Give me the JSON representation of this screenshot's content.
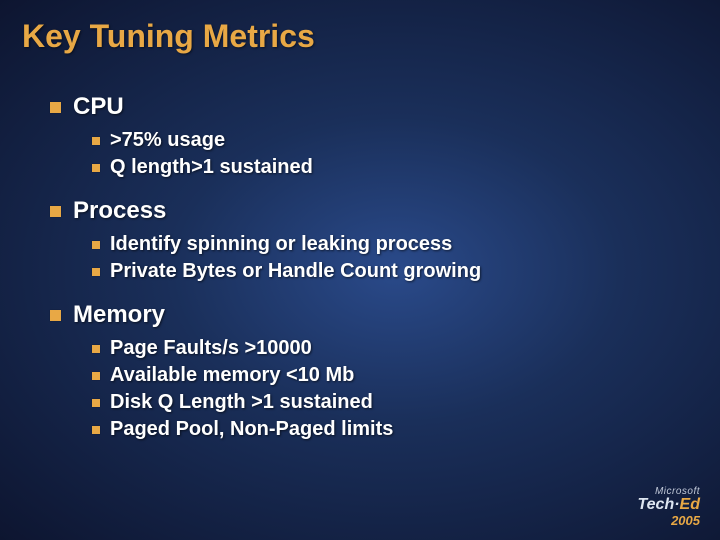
{
  "title": "Key Tuning Metrics",
  "colors": {
    "title": "#e8a845",
    "bullet": "#e8a845",
    "text": "#ffffff",
    "bg_center": "#2a4a8a",
    "bg_edge": "#0d1530"
  },
  "typography": {
    "title_fontsize": 32,
    "section_fontsize": 24,
    "item_fontsize": 20,
    "font_family": "Arial"
  },
  "sections": [
    {
      "heading": "CPU",
      "items": [
        ">75% usage",
        "Q length>1 sustained"
      ]
    },
    {
      "heading": "Process",
      "items": [
        "Identify spinning or leaking process",
        "Private Bytes or Handle Count growing"
      ]
    },
    {
      "heading": "Memory",
      "items": [
        "Page Faults/s >10000",
        "Available memory <10 Mb",
        "Disk Q Length >1 sustained",
        "Paged Pool, Non-Paged limits"
      ]
    }
  ],
  "logo": {
    "brand": "Microsoft",
    "main_a": "Tech·",
    "main_b": "Ed",
    "year": "2005"
  }
}
